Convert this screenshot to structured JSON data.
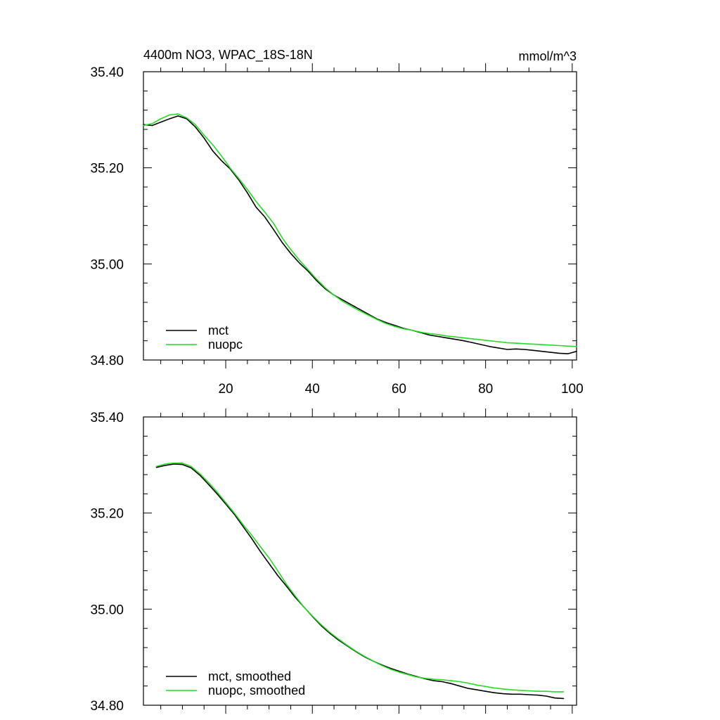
{
  "header": {
    "title_left": "4400m NO3, WPAC_18S-18N",
    "title_right": "mmol/m^3"
  },
  "colors": {
    "mct": "#000000",
    "nuopc": "#22dd22"
  },
  "chart_data": [
    {
      "type": "line",
      "title": "4400m NO3, WPAC_18S-18N",
      "units": "mmol/m^3",
      "xlim": [
        1,
        101
      ],
      "ylim": [
        34.8,
        35.4
      ],
      "x_ticks": [
        20,
        40,
        60,
        80,
        100
      ],
      "x_tick_labels": [
        "20",
        "40",
        "60",
        "80",
        "100"
      ],
      "y_ticks": [
        34.8,
        35.0,
        35.2,
        35.4
      ],
      "y_tick_labels": [
        "34.80",
        "35.00",
        "35.20",
        "35.40"
      ],
      "grid": false,
      "legend_position": "bottom-left",
      "series": [
        {
          "name": "mct",
          "color": "#000000",
          "x": [
            1,
            3,
            5,
            7,
            9,
            11,
            13,
            15,
            17,
            19,
            21,
            23,
            25,
            27,
            29,
            31,
            33,
            35,
            37,
            39,
            41,
            43,
            45,
            47,
            49,
            51,
            53,
            55,
            57,
            59,
            61,
            63,
            65,
            67,
            69,
            71,
            73,
            75,
            77,
            79,
            81,
            83,
            85,
            87,
            89,
            91,
            93,
            95,
            97,
            99,
            101
          ],
          "y": [
            35.29,
            35.288,
            35.295,
            35.302,
            35.308,
            35.302,
            35.285,
            35.262,
            35.235,
            35.215,
            35.198,
            35.175,
            35.148,
            35.118,
            35.098,
            35.072,
            35.045,
            35.022,
            35.002,
            34.985,
            34.965,
            34.948,
            34.935,
            34.925,
            34.915,
            34.905,
            34.895,
            34.885,
            34.878,
            34.872,
            34.866,
            34.862,
            34.857,
            34.852,
            34.849,
            34.846,
            34.843,
            34.84,
            34.836,
            34.832,
            34.828,
            34.825,
            34.822,
            34.823,
            34.822,
            34.82,
            34.818,
            34.816,
            34.814,
            34.813,
            34.818
          ]
        },
        {
          "name": "nuopc",
          "color": "#22dd22",
          "x": [
            1,
            3,
            5,
            7,
            9,
            11,
            13,
            15,
            17,
            19,
            21,
            23,
            25,
            27,
            29,
            31,
            33,
            35,
            37,
            39,
            41,
            43,
            45,
            47,
            49,
            51,
            53,
            55,
            57,
            59,
            61,
            63,
            65,
            67,
            69,
            71,
            73,
            75,
            77,
            79,
            81,
            83,
            85,
            87,
            89,
            91,
            93,
            95,
            97,
            99,
            101
          ],
          "y": [
            35.288,
            35.292,
            35.302,
            35.31,
            35.312,
            35.304,
            35.29,
            35.268,
            35.248,
            35.225,
            35.2,
            35.178,
            35.155,
            35.13,
            35.108,
            35.085,
            35.055,
            35.03,
            35.008,
            34.988,
            34.968,
            34.95,
            34.935,
            34.922,
            34.912,
            34.902,
            34.893,
            34.884,
            34.876,
            34.87,
            34.865,
            34.862,
            34.858,
            34.855,
            34.853,
            34.85,
            34.848,
            34.846,
            34.844,
            34.842,
            34.84,
            34.838,
            34.836,
            34.835,
            34.834,
            34.833,
            34.832,
            34.831,
            34.83,
            34.829,
            34.828
          ]
        }
      ]
    },
    {
      "type": "line",
      "title": "",
      "units": "",
      "xlim": [
        1,
        101
      ],
      "ylim": [
        34.8,
        35.4
      ],
      "x_ticks": [
        20,
        40,
        60,
        80,
        100
      ],
      "x_tick_labels": [],
      "y_ticks": [
        34.8,
        35.0,
        35.2,
        35.4
      ],
      "y_tick_labels": [
        "34.80",
        "35.00",
        "35.20",
        "35.40"
      ],
      "grid": false,
      "legend_position": "bottom-left",
      "series": [
        {
          "name": "mct, smoothed",
          "color": "#000000",
          "x": [
            4,
            6,
            8,
            10,
            12,
            14,
            16,
            18,
            20,
            22,
            24,
            26,
            28,
            30,
            32,
            34,
            36,
            38,
            40,
            42,
            44,
            46,
            48,
            50,
            52,
            54,
            56,
            58,
            60,
            62,
            64,
            66,
            68,
            70,
            72,
            74,
            76,
            78,
            80,
            82,
            84,
            86,
            88,
            90,
            92,
            94,
            96,
            98
          ],
          "y": [
            35.295,
            35.299,
            35.302,
            35.301,
            35.294,
            35.279,
            35.26,
            35.24,
            35.219,
            35.197,
            35.172,
            35.147,
            35.12,
            35.095,
            35.07,
            35.048,
            35.025,
            35.005,
            34.985,
            34.966,
            34.95,
            34.936,
            34.924,
            34.912,
            34.901,
            34.892,
            34.884,
            34.877,
            34.871,
            34.865,
            34.86,
            34.855,
            34.851,
            34.849,
            34.845,
            34.84,
            34.835,
            34.832,
            34.829,
            34.826,
            34.824,
            34.823,
            34.823,
            34.822,
            34.821,
            34.819,
            34.815,
            34.814
          ]
        },
        {
          "name": "nuopc, smoothed",
          "color": "#22dd22",
          "x": [
            4,
            6,
            8,
            10,
            12,
            14,
            16,
            18,
            20,
            22,
            24,
            26,
            28,
            30,
            32,
            34,
            36,
            38,
            40,
            42,
            44,
            46,
            48,
            50,
            52,
            54,
            56,
            58,
            60,
            62,
            64,
            66,
            68,
            70,
            72,
            74,
            76,
            78,
            80,
            82,
            84,
            86,
            88,
            90,
            92,
            94,
            96,
            98
          ],
          "y": [
            35.297,
            35.302,
            35.304,
            35.304,
            35.297,
            35.282,
            35.264,
            35.244,
            35.222,
            35.2,
            35.176,
            35.154,
            35.13,
            35.107,
            35.08,
            35.052,
            35.028,
            35.005,
            34.986,
            34.968,
            34.952,
            34.938,
            34.925,
            34.913,
            34.902,
            34.892,
            34.883,
            34.875,
            34.869,
            34.864,
            34.859,
            34.856,
            34.854,
            34.853,
            34.851,
            34.849,
            34.846,
            34.842,
            34.839,
            34.836,
            34.834,
            34.832,
            34.831,
            34.83,
            34.829,
            34.829,
            34.828,
            34.828
          ]
        }
      ]
    }
  ]
}
